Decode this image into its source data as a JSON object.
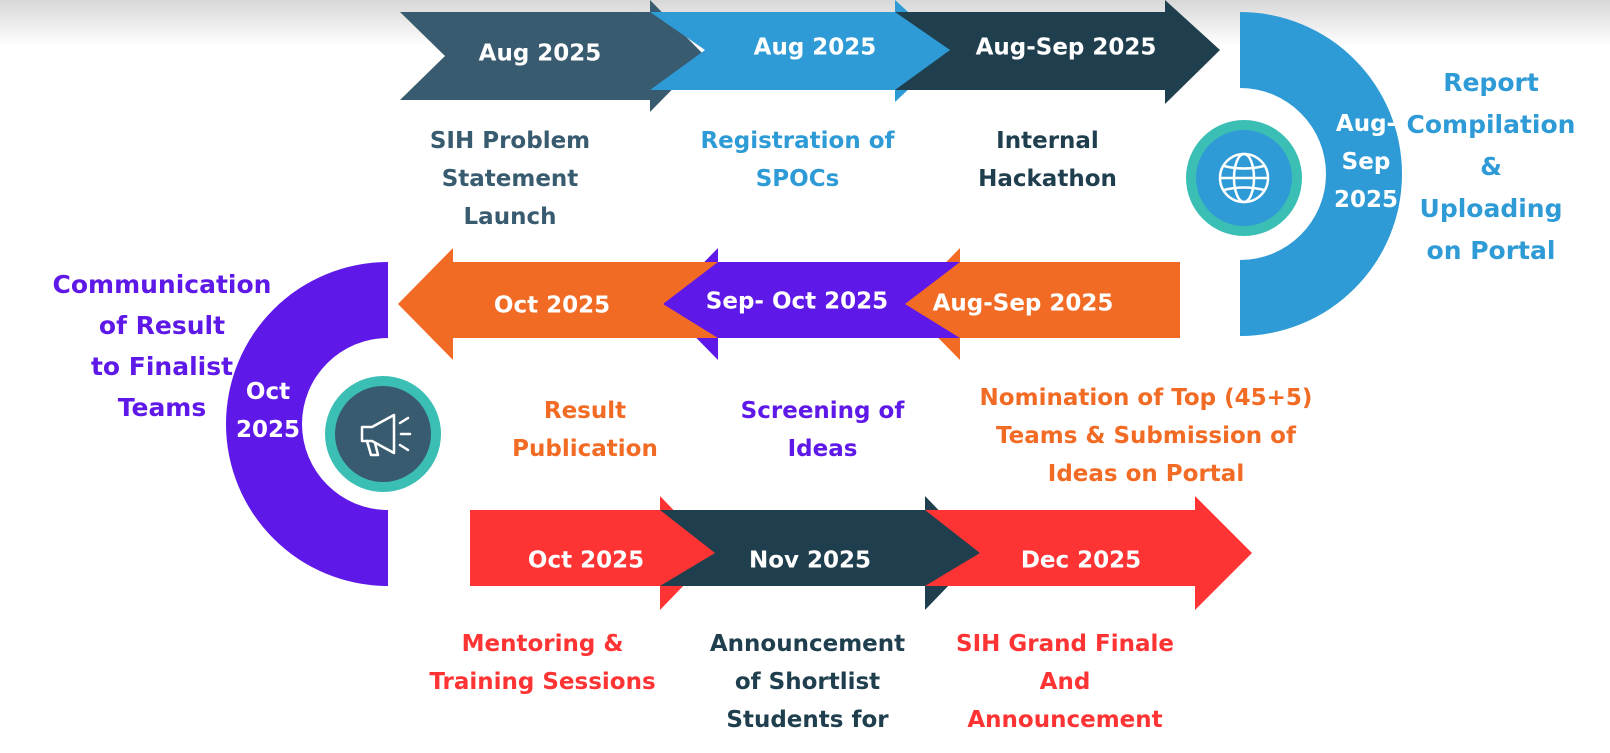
{
  "colors": {
    "dark_slate": "#385b6f",
    "sky_blue": "#2e9bd6",
    "navy": "#203f4e",
    "orange": "#f26b25",
    "purple": "#5e18e8",
    "red": "#fe3434",
    "teal": "#3bbfb5"
  },
  "stages": [
    {
      "date": "Aug 2025",
      "title": "SIH Problem\nStatement\nLaunch",
      "color": "#385b6f"
    },
    {
      "date": "Aug 2025",
      "title": "Registration of\nSPOCs",
      "color": "#2e9bd6"
    },
    {
      "date": "Aug-Sep 2025",
      "title": "Internal\nHackathon",
      "color": "#203f4e"
    },
    {
      "date": "Aug-\nSep\n2025",
      "title": "Report\nCompilation\n&\nUploading\non Portal",
      "color": "#2e9bd6"
    },
    {
      "date": "Aug-Sep 2025",
      "title": "Nomination of Top (45+5)\nTeams & Submission of\nIdeas on Portal",
      "color": "#f26b25"
    },
    {
      "date": "Sep- Oct 2025",
      "title": "Screening of\nIdeas",
      "color": "#5e18e8"
    },
    {
      "date": "Oct 2025",
      "title": "Result\nPublication",
      "color": "#f26b25"
    },
    {
      "date": "Oct\n2025",
      "title": "Communication\nof Result\nto Finalist\nTeams",
      "color": "#5e18e8"
    },
    {
      "date": "Oct 2025",
      "title": "Mentoring &\nTraining Sessions",
      "color": "#fe3434"
    },
    {
      "date": "Nov 2025",
      "title": "Announcement\nof Shortlist\nStudents for",
      "color": "#203f4e"
    },
    {
      "date": "Dec 2025",
      "title": "SIH Grand Finale\nAnd\nAnnouncement",
      "color": "#fe3434"
    }
  ],
  "icons": {
    "top_badge": "globe-icon",
    "bottom_badge": "megaphone-icon"
  }
}
